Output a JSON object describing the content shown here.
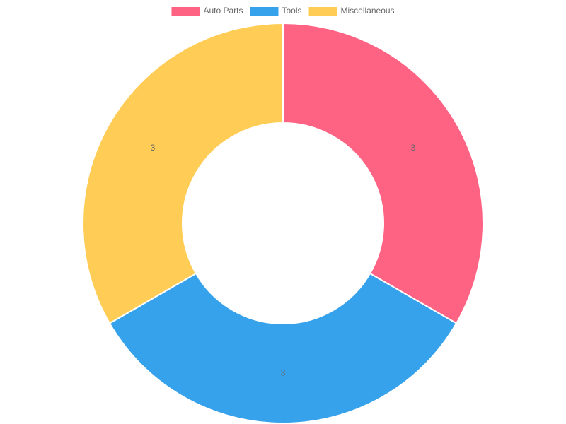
{
  "chart_data": {
    "type": "doughnut",
    "categories": [
      "Auto Parts",
      "Tools",
      "Miscellaneous"
    ],
    "values": [
      3,
      3,
      3
    ],
    "colors": [
      "#ff6384",
      "#36a2eb",
      "#ffcd56"
    ],
    "legend": "top"
  }
}
